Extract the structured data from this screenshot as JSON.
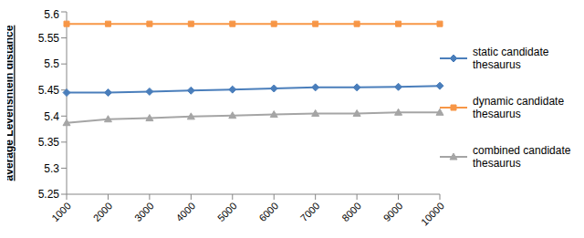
{
  "chart_data": {
    "type": "line",
    "y_label": "average Levenshtein distance",
    "categories": [
      "1000",
      "2000",
      "3000",
      "4000",
      "5000",
      "6000",
      "7000",
      "8000",
      "9000",
      "10000"
    ],
    "series": [
      {
        "name": "static candidate thesaurus",
        "color": "#4a7ebb",
        "marker": "diamond",
        "values": [
          5.445,
          5.445,
          5.447,
          5.449,
          5.451,
          5.453,
          5.455,
          5.455,
          5.456,
          5.458
        ]
      },
      {
        "name": "dynamic candidate thesaurus",
        "color": "#f79646",
        "marker": "square",
        "values": [
          5.577,
          5.577,
          5.577,
          5.577,
          5.577,
          5.577,
          5.577,
          5.577,
          5.577,
          5.577
        ]
      },
      {
        "name": "combined candidate thesaurus",
        "color": "#a5a5a5",
        "marker": "triangle",
        "values": [
          5.387,
          5.394,
          5.396,
          5.399,
          5.401,
          5.403,
          5.405,
          5.405,
          5.407,
          5.407
        ]
      }
    ],
    "ylim": [
      5.25,
      5.6
    ],
    "yticks": [
      5.25,
      5.3,
      5.35,
      5.4,
      5.45,
      5.5,
      5.55,
      5.6
    ],
    "grid": false,
    "legend": "right"
  }
}
